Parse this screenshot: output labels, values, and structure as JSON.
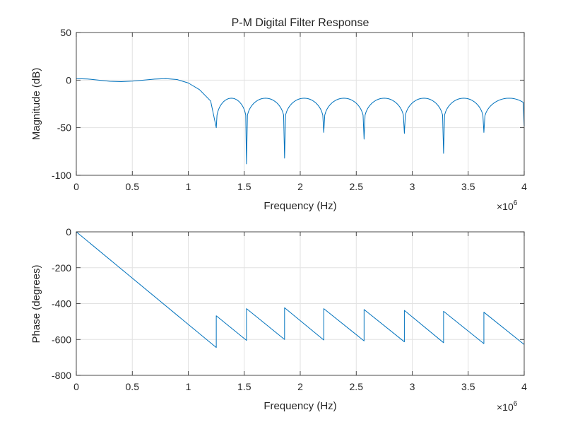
{
  "chart_data": [
    {
      "type": "line",
      "title": "P-M Digital Filter Response",
      "xlabel": "Frequency (Hz)",
      "ylabel": "Magnitude (dB)",
      "x_multiplier_base": "×10",
      "x_multiplier_exp": "6",
      "xlim": [
        0,
        4000000
      ],
      "ylim": [
        -100,
        50
      ],
      "xticks": [
        0,
        500000,
        1000000,
        1500000,
        2000000,
        2500000,
        3000000,
        3500000,
        4000000
      ],
      "xtick_labels": [
        "0",
        "0.5",
        "1",
        "1.5",
        "2",
        "2.5",
        "3",
        "3.5",
        "4"
      ],
      "yticks": [
        -100,
        -50,
        0,
        50
      ],
      "ytick_labels": [
        "-100",
        "-50",
        "0",
        "50"
      ],
      "grid": true,
      "series": [
        {
          "color": "#0072bd",
          "passband": [
            [
              0,
              1.5
            ],
            [
              100000,
              1.2
            ],
            [
              200000,
              0
            ],
            [
              300000,
              -1.2
            ],
            [
              400000,
              -1.6
            ],
            [
              500000,
              -1.1
            ],
            [
              600000,
              0
            ],
            [
              700000,
              1.1
            ],
            [
              800000,
              1.5
            ],
            [
              900000,
              0.6
            ],
            [
              1000000,
              -3
            ],
            [
              1100000,
              -10
            ],
            [
              1200000,
              -22
            ],
            [
              1250000,
              -50
            ]
          ],
          "nulls": [
            1250000,
            1520000,
            1860000,
            2210000,
            2570000,
            2930000,
            3280000,
            3640000
          ],
          "null_depths": [
            -50,
            -88,
            -82,
            -55,
            -62,
            -56,
            -77,
            -55
          ],
          "lobe_peak": -19,
          "end": [
            4000000,
            -48
          ]
        }
      ]
    },
    {
      "type": "line",
      "title": "",
      "xlabel": "Frequency (Hz)",
      "ylabel": "Phase (degrees)",
      "x_multiplier_base": "×10",
      "x_multiplier_exp": "6",
      "xlim": [
        0,
        4000000
      ],
      "ylim": [
        -800,
        0
      ],
      "xticks": [
        0,
        500000,
        1000000,
        1500000,
        2000000,
        2500000,
        3000000,
        3500000,
        4000000
      ],
      "xtick_labels": [
        "0",
        "0.5",
        "1",
        "1.5",
        "2",
        "2.5",
        "3",
        "3.5",
        "4"
      ],
      "yticks": [
        -800,
        -600,
        -400,
        -200,
        0
      ],
      "ytick_labels": [
        "-800",
        "-600",
        "-400",
        "-200",
        "0"
      ],
      "grid": true,
      "series": [
        {
          "color": "#0072bd",
          "points": [
            [
              0,
              0
            ],
            [
              1250000,
              -645
            ],
            [
              1250000,
              -468
            ],
            [
              1520000,
              -605
            ],
            [
              1520000,
              -428
            ],
            [
              1860000,
              -600
            ],
            [
              1860000,
              -423
            ],
            [
              2210000,
              -603
            ],
            [
              2210000,
              -428
            ],
            [
              2570000,
              -608
            ],
            [
              2570000,
              -433
            ],
            [
              2930000,
              -613
            ],
            [
              2930000,
              -438
            ],
            [
              3280000,
              -618
            ],
            [
              3280000,
              -443
            ],
            [
              3640000,
              -623
            ],
            [
              3640000,
              -448
            ],
            [
              4000000,
              -628
            ]
          ]
        }
      ]
    }
  ]
}
